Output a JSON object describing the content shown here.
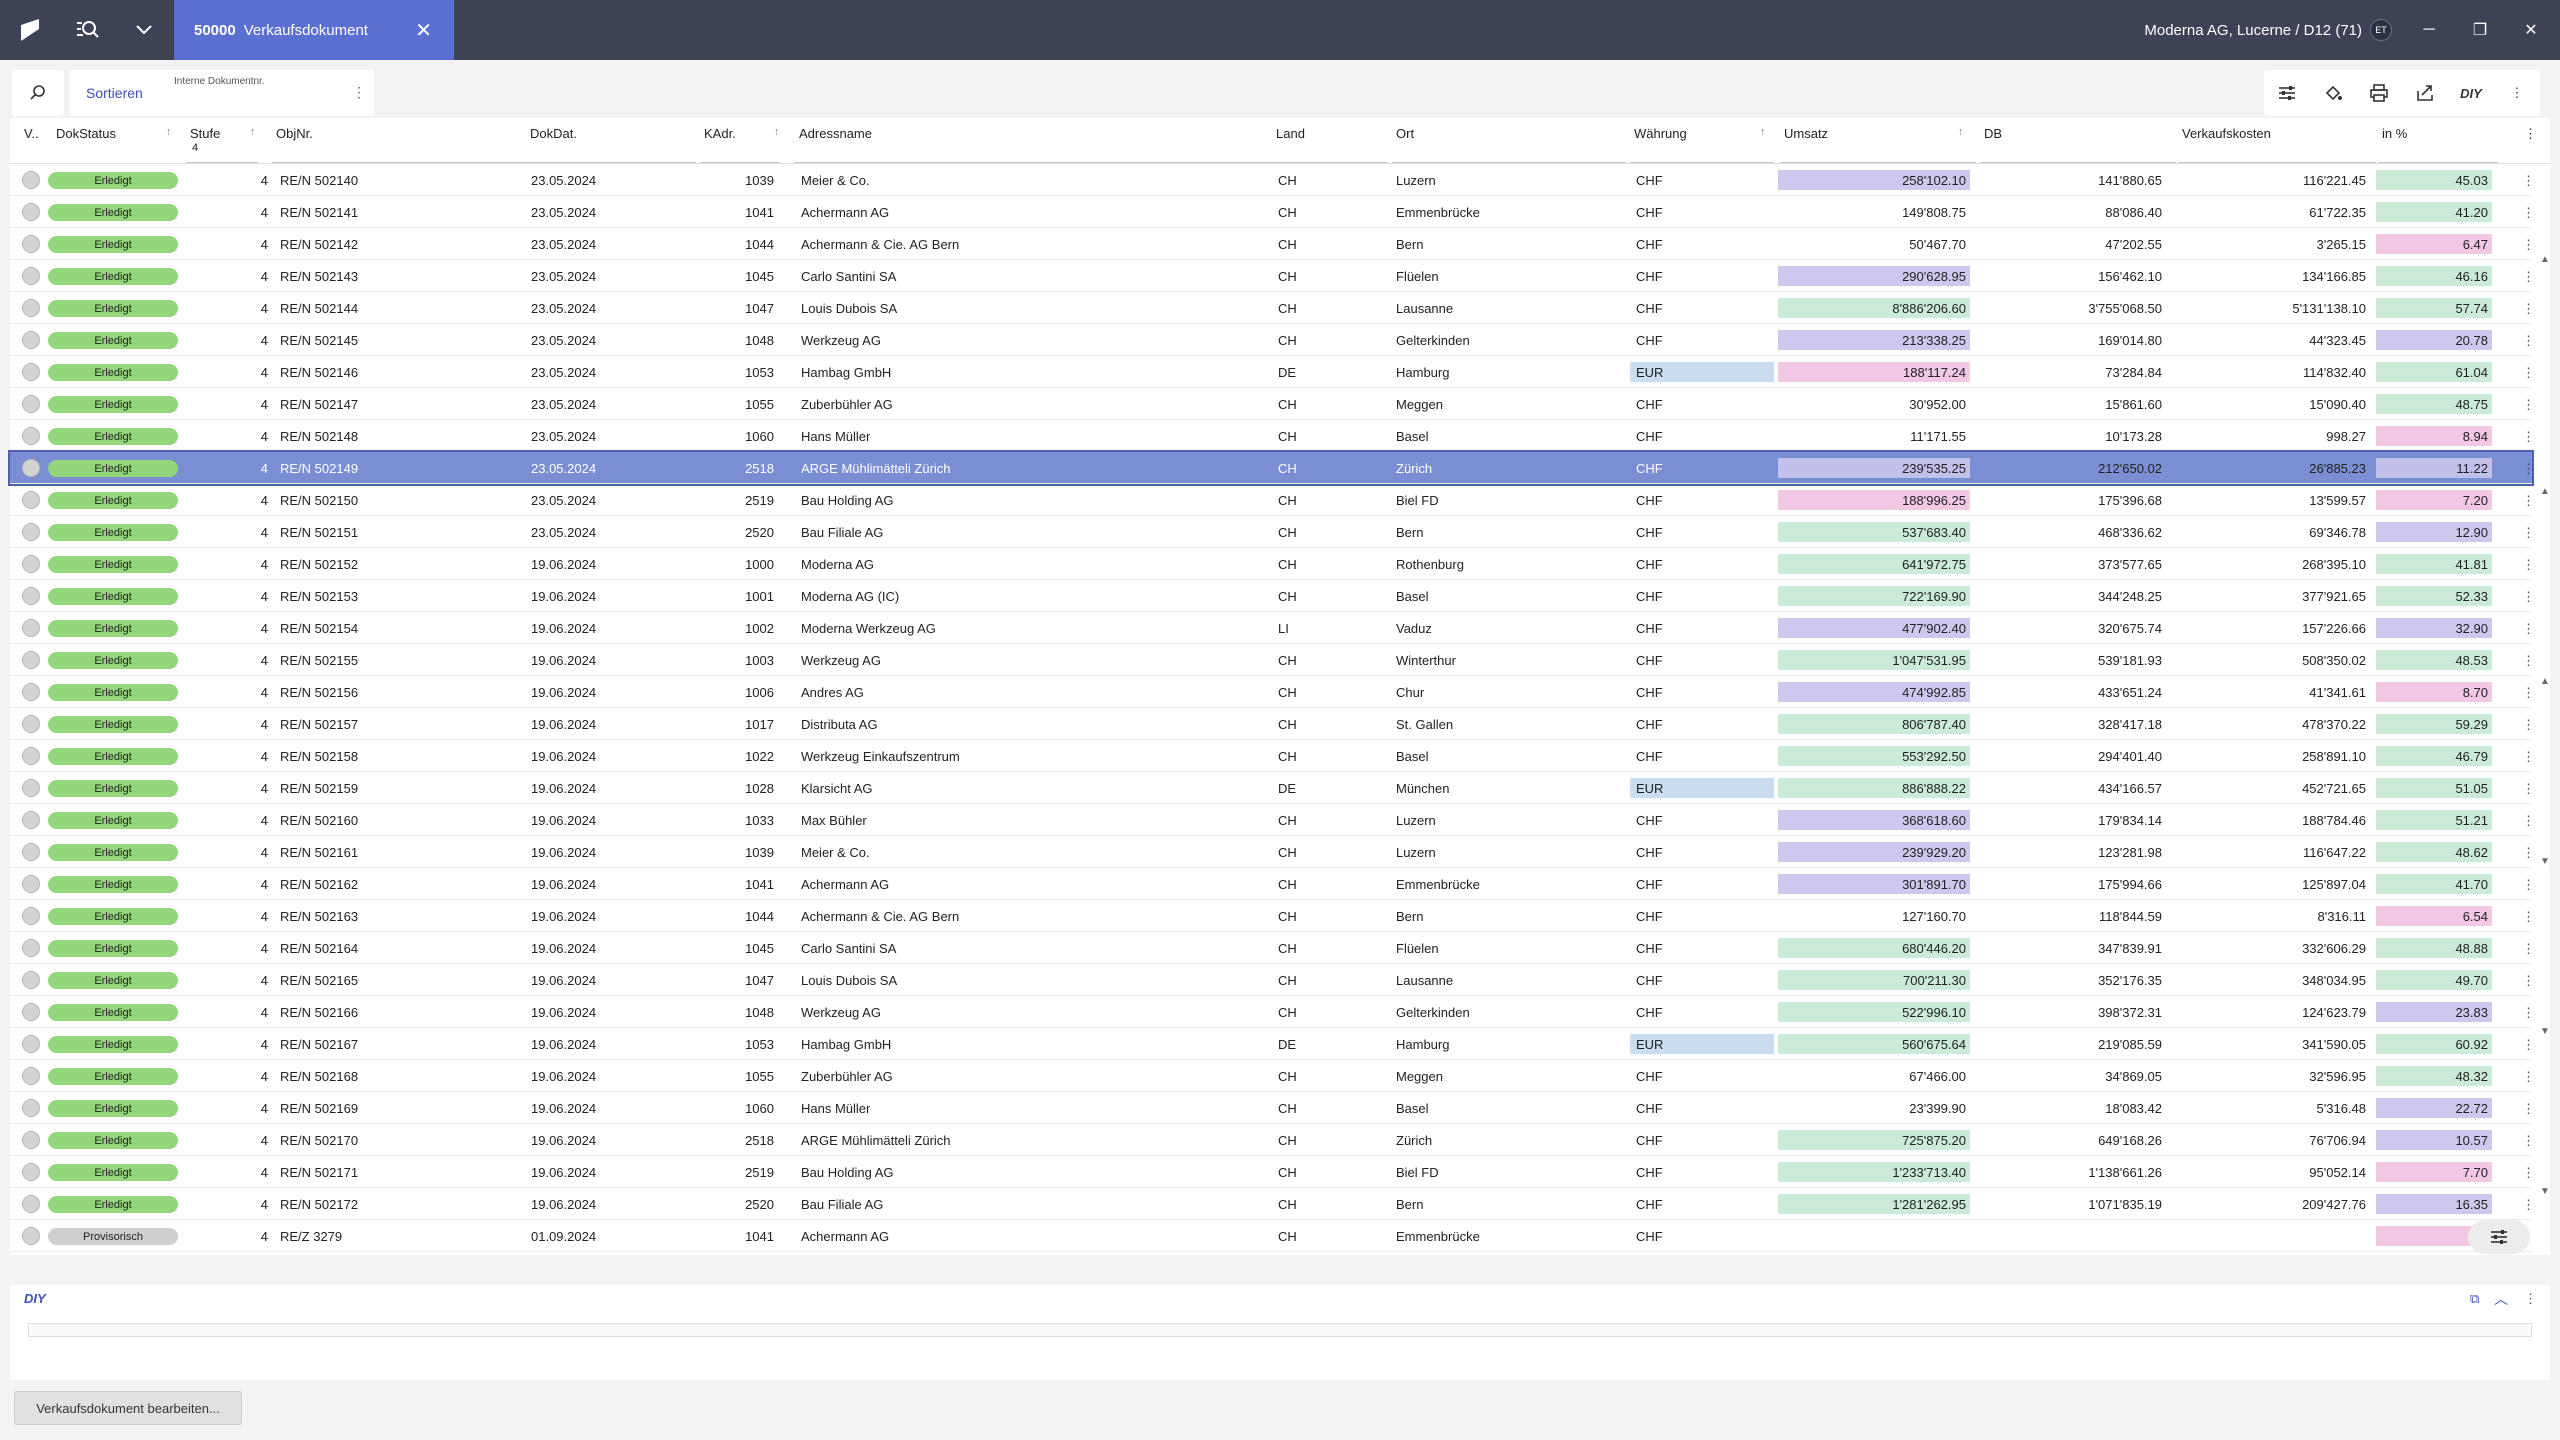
{
  "app": {
    "doc_number": "50000",
    "doc_title": "Verkaufsdokument",
    "company": "Moderna AG, Lucerne / D12 (71)",
    "avatar": "ET"
  },
  "toolbar": {
    "sort_label": "Sortieren",
    "sort_sub": "Interne Dokumentnr.",
    "diy": "DIY"
  },
  "columns": {
    "v": "V..",
    "status": "DokStatus",
    "stufe": "Stufe",
    "stufe_sub": "4",
    "objnr": "ObjNr.",
    "dokdat": "DokDat.",
    "kadr": "KAdr.",
    "adr": "Adressname",
    "land": "Land",
    "ort": "Ort",
    "cur": "Währung",
    "umsatz": "Umsatz",
    "db": "DB",
    "vk": "Verkaufskosten",
    "pct": "in %"
  },
  "colors": {
    "purple": "#cfc8ee",
    "green": "#cbebd8",
    "pink": "#f1c7e4",
    "blue_eur": "#c9dcf0"
  },
  "rows": [
    {
      "s": "Erledigt",
      "st": "4",
      "obj": "RE/N 502140",
      "d": "23.05.2024",
      "k": "1039",
      "a": "Meier & Co.",
      "l": "CH",
      "o": "Luzern",
      "c": "CHF",
      "u": "258'102.10",
      "uc": "purple",
      "db": "141'880.65",
      "vk": "116'221.45",
      "p": "45.03",
      "pc": "green"
    },
    {
      "s": "Erledigt",
      "st": "4",
      "obj": "RE/N 502141",
      "d": "23.05.2024",
      "k": "1041",
      "a": "Achermann  AG",
      "l": "CH",
      "o": "Emmenbrücke",
      "c": "CHF",
      "u": "149'808.75",
      "uc": "",
      "db": "88'086.40",
      "vk": "61'722.35",
      "p": "41.20",
      "pc": "green"
    },
    {
      "s": "Erledigt",
      "st": "4",
      "obj": "RE/N 502142",
      "d": "23.05.2024",
      "k": "1044",
      "a": "Achermann & Cie. AG Bern",
      "l": "CH",
      "o": "Bern",
      "c": "CHF",
      "u": "50'467.70",
      "uc": "",
      "db": "47'202.55",
      "vk": "3'265.15",
      "p": "6.47",
      "pc": "pink"
    },
    {
      "s": "Erledigt",
      "st": "4",
      "obj": "RE/N 502143",
      "d": "23.05.2024",
      "k": "1045",
      "a": "Carlo Santini SA",
      "l": "CH",
      "o": "Flüelen",
      "c": "CHF",
      "u": "290'628.95",
      "uc": "purple",
      "db": "156'462.10",
      "vk": "134'166.85",
      "p": "46.16",
      "pc": "green"
    },
    {
      "s": "Erledigt",
      "st": "4",
      "obj": "RE/N 502144",
      "d": "23.05.2024",
      "k": "1047",
      "a": "Louis Dubois SA",
      "l": "CH",
      "o": "Lausanne",
      "c": "CHF",
      "u": "8'886'206.60",
      "uc": "green",
      "db": "3'755'068.50",
      "vk": "5'131'138.10",
      "p": "57.74",
      "pc": "green"
    },
    {
      "s": "Erledigt",
      "st": "4",
      "obj": "RE/N 502145",
      "d": "23.05.2024",
      "k": "1048",
      "a": "Werkzeug AG",
      "l": "CH",
      "o": "Gelterkinden",
      "c": "CHF",
      "u": "213'338.25",
      "uc": "purple",
      "db": "169'014.80",
      "vk": "44'323.45",
      "p": "20.78",
      "pc": "purple"
    },
    {
      "s": "Erledigt",
      "st": "4",
      "obj": "RE/N 502146",
      "d": "23.05.2024",
      "k": "1053",
      "a": "Hambag GmbH",
      "l": "DE",
      "o": "Hamburg",
      "c": "EUR",
      "u": "188'117.24",
      "uc": "pink",
      "db": "73'284.84",
      "vk": "114'832.40",
      "p": "61.04",
      "pc": "green"
    },
    {
      "s": "Erledigt",
      "st": "4",
      "obj": "RE/N 502147",
      "d": "23.05.2024",
      "k": "1055",
      "a": "Zuberbühler AG",
      "l": "CH",
      "o": "Meggen",
      "c": "CHF",
      "u": "30'952.00",
      "uc": "",
      "db": "15'861.60",
      "vk": "15'090.40",
      "p": "48.75",
      "pc": "green"
    },
    {
      "s": "Erledigt",
      "st": "4",
      "obj": "RE/N 502148",
      "d": "23.05.2024",
      "k": "1060",
      "a": "Hans Müller",
      "l": "CH",
      "o": "Basel",
      "c": "CHF",
      "u": "11'171.55",
      "uc": "",
      "db": "10'173.28",
      "vk": "998.27",
      "p": "8.94",
      "pc": "pink"
    },
    {
      "s": "Erledigt",
      "st": "4",
      "obj": "RE/N 502149",
      "d": "23.05.2024",
      "k": "2518",
      "a": "ARGE Mühlimätteli Zürich",
      "l": "CH",
      "o": "Zürich",
      "c": "CHF",
      "u": "239'535.25",
      "uc": "purple",
      "db": "212'650.02",
      "vk": "26'885.23",
      "p": "11.22",
      "pc": "purple",
      "sel": true
    },
    {
      "s": "Erledigt",
      "st": "4",
      "obj": "RE/N 502150",
      "d": "23.05.2024",
      "k": "2519",
      "a": "Bau Holding AG",
      "l": "CH",
      "o": "Biel FD",
      "c": "CHF",
      "u": "188'996.25",
      "uc": "pink",
      "db": "175'396.68",
      "vk": "13'599.57",
      "p": "7.20",
      "pc": "pink"
    },
    {
      "s": "Erledigt",
      "st": "4",
      "obj": "RE/N 502151",
      "d": "23.05.2024",
      "k": "2520",
      "a": "Bau Filiale AG",
      "l": "CH",
      "o": "Bern",
      "c": "CHF",
      "u": "537'683.40",
      "uc": "green",
      "db": "468'336.62",
      "vk": "69'346.78",
      "p": "12.90",
      "pc": "purple"
    },
    {
      "s": "Erledigt",
      "st": "4",
      "obj": "RE/N 502152",
      "d": "19.06.2024",
      "k": "1000",
      "a": "Moderna AG",
      "l": "CH",
      "o": "Rothenburg",
      "c": "CHF",
      "u": "641'972.75",
      "uc": "green",
      "db": "373'577.65",
      "vk": "268'395.10",
      "p": "41.81",
      "pc": "green"
    },
    {
      "s": "Erledigt",
      "st": "4",
      "obj": "RE/N 502153",
      "d": "19.06.2024",
      "k": "1001",
      "a": "Moderna AG (IC)",
      "l": "CH",
      "o": "Basel",
      "c": "CHF",
      "u": "722'169.90",
      "uc": "green",
      "db": "344'248.25",
      "vk": "377'921.65",
      "p": "52.33",
      "pc": "green"
    },
    {
      "s": "Erledigt",
      "st": "4",
      "obj": "RE/N 502154",
      "d": "19.06.2024",
      "k": "1002",
      "a": "Moderna Werkzeug AG",
      "l": "LI",
      "o": "Vaduz",
      "c": "CHF",
      "u": "477'902.40",
      "uc": "purple",
      "db": "320'675.74",
      "vk": "157'226.66",
      "p": "32.90",
      "pc": "purple"
    },
    {
      "s": "Erledigt",
      "st": "4",
      "obj": "RE/N 502155",
      "d": "19.06.2024",
      "k": "1003",
      "a": "Werkzeug AG",
      "l": "CH",
      "o": "Winterthur",
      "c": "CHF",
      "u": "1'047'531.95",
      "uc": "green",
      "db": "539'181.93",
      "vk": "508'350.02",
      "p": "48.53",
      "pc": "green"
    },
    {
      "s": "Erledigt",
      "st": "4",
      "obj": "RE/N 502156",
      "d": "19.06.2024",
      "k": "1006",
      "a": "Andres AG",
      "l": "CH",
      "o": "Chur",
      "c": "CHF",
      "u": "474'992.85",
      "uc": "purple",
      "db": "433'651.24",
      "vk": "41'341.61",
      "p": "8.70",
      "pc": "pink"
    },
    {
      "s": "Erledigt",
      "st": "4",
      "obj": "RE/N 502157",
      "d": "19.06.2024",
      "k": "1017",
      "a": "Distributa AG",
      "l": "CH",
      "o": "St. Gallen",
      "c": "CHF",
      "u": "806'787.40",
      "uc": "green",
      "db": "328'417.18",
      "vk": "478'370.22",
      "p": "59.29",
      "pc": "green"
    },
    {
      "s": "Erledigt",
      "st": "4",
      "obj": "RE/N 502158",
      "d": "19.06.2024",
      "k": "1022",
      "a": "Werkzeug Einkaufszentrum",
      "l": "CH",
      "o": "Basel",
      "c": "CHF",
      "u": "553'292.50",
      "uc": "green",
      "db": "294'401.40",
      "vk": "258'891.10",
      "p": "46.79",
      "pc": "green"
    },
    {
      "s": "Erledigt",
      "st": "4",
      "obj": "RE/N 502159",
      "d": "19.06.2024",
      "k": "1028",
      "a": "Klarsicht AG",
      "l": "DE",
      "o": "München",
      "c": "EUR",
      "u": "886'888.22",
      "uc": "green",
      "db": "434'166.57",
      "vk": "452'721.65",
      "p": "51.05",
      "pc": "green"
    },
    {
      "s": "Erledigt",
      "st": "4",
      "obj": "RE/N 502160",
      "d": "19.06.2024",
      "k": "1033",
      "a": "Max Bühler",
      "l": "CH",
      "o": "Luzern",
      "c": "CHF",
      "u": "368'618.60",
      "uc": "purple",
      "db": "179'834.14",
      "vk": "188'784.46",
      "p": "51.21",
      "pc": "green"
    },
    {
      "s": "Erledigt",
      "st": "4",
      "obj": "RE/N 502161",
      "d": "19.06.2024",
      "k": "1039",
      "a": "Meier & Co.",
      "l": "CH",
      "o": "Luzern",
      "c": "CHF",
      "u": "239'929.20",
      "uc": "purple",
      "db": "123'281.98",
      "vk": "116'647.22",
      "p": "48.62",
      "pc": "green"
    },
    {
      "s": "Erledigt",
      "st": "4",
      "obj": "RE/N 502162",
      "d": "19.06.2024",
      "k": "1041",
      "a": "Achermann  AG",
      "l": "CH",
      "o": "Emmenbrücke",
      "c": "CHF",
      "u": "301'891.70",
      "uc": "purple",
      "db": "175'994.66",
      "vk": "125'897.04",
      "p": "41.70",
      "pc": "green"
    },
    {
      "s": "Erledigt",
      "st": "4",
      "obj": "RE/N 502163",
      "d": "19.06.2024",
      "k": "1044",
      "a": "Achermann & Cie. AG Bern",
      "l": "CH",
      "o": "Bern",
      "c": "CHF",
      "u": "127'160.70",
      "uc": "",
      "db": "118'844.59",
      "vk": "8'316.11",
      "p": "6.54",
      "pc": "pink"
    },
    {
      "s": "Erledigt",
      "st": "4",
      "obj": "RE/N 502164",
      "d": "19.06.2024",
      "k": "1045",
      "a": "Carlo Santini SA",
      "l": "CH",
      "o": "Flüelen",
      "c": "CHF",
      "u": "680'446.20",
      "uc": "green",
      "db": "347'839.91",
      "vk": "332'606.29",
      "p": "48.88",
      "pc": "green"
    },
    {
      "s": "Erledigt",
      "st": "4",
      "obj": "RE/N 502165",
      "d": "19.06.2024",
      "k": "1047",
      "a": "Louis Dubois SA",
      "l": "CH",
      "o": "Lausanne",
      "c": "CHF",
      "u": "700'211.30",
      "uc": "green",
      "db": "352'176.35",
      "vk": "348'034.95",
      "p": "49.70",
      "pc": "green"
    },
    {
      "s": "Erledigt",
      "st": "4",
      "obj": "RE/N 502166",
      "d": "19.06.2024",
      "k": "1048",
      "a": "Werkzeug AG",
      "l": "CH",
      "o": "Gelterkinden",
      "c": "CHF",
      "u": "522'996.10",
      "uc": "green",
      "db": "398'372.31",
      "vk": "124'623.79",
      "p": "23.83",
      "pc": "purple"
    },
    {
      "s": "Erledigt",
      "st": "4",
      "obj": "RE/N 502167",
      "d": "19.06.2024",
      "k": "1053",
      "a": "Hambag GmbH",
      "l": "DE",
      "o": "Hamburg",
      "c": "EUR",
      "u": "560'675.64",
      "uc": "green",
      "db": "219'085.59",
      "vk": "341'590.05",
      "p": "60.92",
      "pc": "green"
    },
    {
      "s": "Erledigt",
      "st": "4",
      "obj": "RE/N 502168",
      "d": "19.06.2024",
      "k": "1055",
      "a": "Zuberbühler AG",
      "l": "CH",
      "o": "Meggen",
      "c": "CHF",
      "u": "67'466.00",
      "uc": "",
      "db": "34'869.05",
      "vk": "32'596.95",
      "p": "48.32",
      "pc": "green"
    },
    {
      "s": "Erledigt",
      "st": "4",
      "obj": "RE/N 502169",
      "d": "19.06.2024",
      "k": "1060",
      "a": "Hans Müller",
      "l": "CH",
      "o": "Basel",
      "c": "CHF",
      "u": "23'399.90",
      "uc": "",
      "db": "18'083.42",
      "vk": "5'316.48",
      "p": "22.72",
      "pc": "purple"
    },
    {
      "s": "Erledigt",
      "st": "4",
      "obj": "RE/N 502170",
      "d": "19.06.2024",
      "k": "2518",
      "a": "ARGE Mühlimätteli Zürich",
      "l": "CH",
      "o": "Zürich",
      "c": "CHF",
      "u": "725'875.20",
      "uc": "green",
      "db": "649'168.26",
      "vk": "76'706.94",
      "p": "10.57",
      "pc": "purple"
    },
    {
      "s": "Erledigt",
      "st": "4",
      "obj": "RE/N 502171",
      "d": "19.06.2024",
      "k": "2519",
      "a": "Bau Holding AG",
      "l": "CH",
      "o": "Biel FD",
      "c": "CHF",
      "u": "1'233'713.40",
      "uc": "green",
      "db": "1'138'661.26",
      "vk": "95'052.14",
      "p": "7.70",
      "pc": "pink"
    },
    {
      "s": "Erledigt",
      "st": "4",
      "obj": "RE/N 502172",
      "d": "19.06.2024",
      "k": "2520",
      "a": "Bau Filiale AG",
      "l": "CH",
      "o": "Bern",
      "c": "CHF",
      "u": "1'281'262.95",
      "uc": "green",
      "db": "1'071'835.19",
      "vk": "209'427.76",
      "p": "16.35",
      "pc": "purple"
    },
    {
      "s": "Provisorisch",
      "st": "4",
      "obj": "RE/Z 3279",
      "d": "01.09.2024",
      "k": "1041",
      "a": "Achermann  AG",
      "l": "CH",
      "o": "Emmenbrücke",
      "c": "CHF",
      "u": "",
      "uc": "",
      "db": "",
      "vk": "",
      "p": "",
      "pc": "pink"
    }
  ],
  "bottom": {
    "diy_label": "DIY",
    "edit_button": "Verkaufsdokument bearbeiten..."
  }
}
